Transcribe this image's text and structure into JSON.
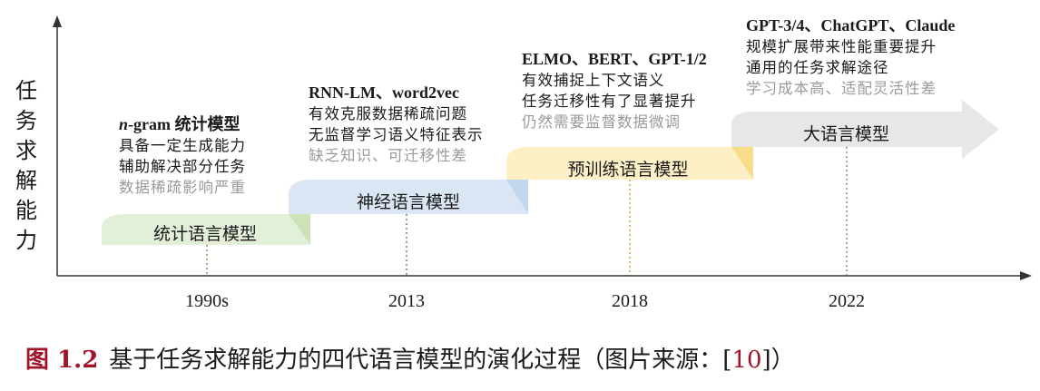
{
  "y_axis_label": "任务求解能力",
  "stages": [
    {
      "label": "统计语言模型",
      "year": "1990s",
      "color": "#e2efd9",
      "highlight": "#cbe3b6",
      "heading_italic": "n",
      "heading": "-gram 统计模型",
      "lines": [
        "具备一定生成能力",
        "辅助解决部分任务"
      ],
      "dim_line": "数据稀疏影响严重"
    },
    {
      "label": "神经语言模型",
      "year": "2013",
      "color": "#dae6f3",
      "highlight": "#c2d6ee",
      "heading_italic": "",
      "heading": "RNN-LM、word2vec",
      "lines": [
        "有效克服数据稀疏问题",
        "无监督学习语义特征表示"
      ],
      "dim_line": "缺乏知识、可迁移性差"
    },
    {
      "label": "预训练语言模型",
      "year": "2018",
      "color": "#fdefc6",
      "highlight": "#f9dc8a",
      "heading_italic": "",
      "heading": "ELMO、BERT、GPT-1/2",
      "lines": [
        "有效捕捉上下文语义",
        "任务迁移性有了显著提升"
      ],
      "dim_line": "仍然需要监督数据微调"
    },
    {
      "label": "大语言模型",
      "year": "2022",
      "color": "#e7e7e7",
      "highlight": "#d4d4d4",
      "heading_italic": "",
      "heading": "GPT-3/4、ChatGPT、Claude",
      "lines": [
        "规模扩展带来性能重要提升",
        "通用的任务求解途径"
      ],
      "dim_line": "学习成本高、适配灵活性差"
    }
  ],
  "caption": {
    "number": "图 1.2",
    "text": "基于任务求解能力的四代语言模型的演化过程（图片来源：[",
    "ref": "10",
    "close": "]）"
  },
  "colors": {
    "axis": "#333333",
    "dotted": [
      "#7a9a5a",
      "#5a7fb0",
      "#c9a640",
      "#888888"
    ],
    "caption_accent": "#a0142a"
  }
}
